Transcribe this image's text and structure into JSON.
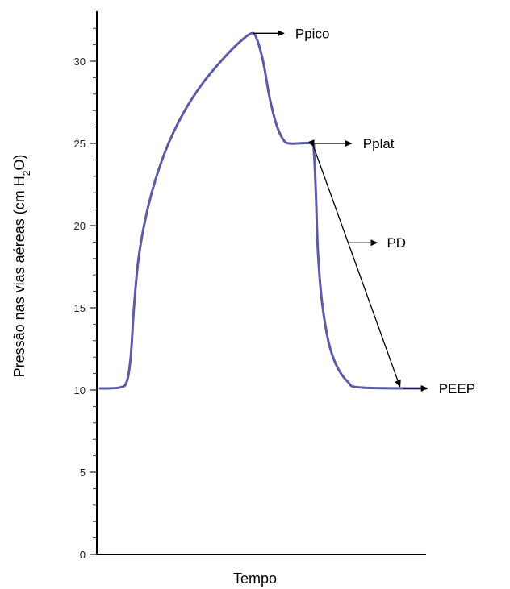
{
  "chart_data": {
    "type": "line",
    "xlabel": "Tempo",
    "ylabel_parts": [
      "Pressão nas vias aéreas (cm H",
      "2",
      "O)"
    ],
    "ylim": [
      0,
      32
    ],
    "yticks": [
      0,
      5,
      10,
      15,
      20,
      25,
      30
    ],
    "minor_tick_step": 1,
    "grid": false,
    "line_color": "#5b5ba8",
    "x_units": "relative time (0-1)",
    "series": [
      {
        "points": [
          [
            0.0,
            10.1
          ],
          [
            0.06,
            10.15
          ],
          [
            0.082,
            10.5
          ],
          [
            0.094,
            12.0
          ],
          [
            0.104,
            15.0
          ],
          [
            0.118,
            18.0
          ],
          [
            0.14,
            20.5
          ],
          [
            0.17,
            22.8
          ],
          [
            0.21,
            25.0
          ],
          [
            0.26,
            27.0
          ],
          [
            0.32,
            28.8
          ],
          [
            0.38,
            30.2
          ],
          [
            0.43,
            31.2
          ],
          [
            0.465,
            31.7
          ],
          [
            0.48,
            31.4
          ],
          [
            0.5,
            30.0
          ],
          [
            0.52,
            27.8
          ],
          [
            0.54,
            26.2
          ],
          [
            0.56,
            25.3
          ],
          [
            0.58,
            25.0
          ],
          [
            0.648,
            25.0
          ],
          [
            0.656,
            24.5
          ],
          [
            0.662,
            22.0
          ],
          [
            0.668,
            18.5
          ],
          [
            0.68,
            15.5
          ],
          [
            0.7,
            13.0
          ],
          [
            0.725,
            11.5
          ],
          [
            0.76,
            10.5
          ],
          [
            0.8,
            10.15
          ],
          [
            1.0,
            10.1
          ]
        ]
      }
    ],
    "annotations": [
      {
        "label": "Ppico",
        "anchor": [
          0.47,
          31.7
        ]
      },
      {
        "label": "Pplat",
        "anchor": [
          0.648,
          25.0
        ]
      },
      {
        "label": "PD",
        "from": [
          0.655,
          24.8
        ],
        "to": [
          0.92,
          10.2
        ]
      },
      {
        "label": "PEEP",
        "anchor": [
          0.93,
          10.1
        ]
      }
    ]
  }
}
